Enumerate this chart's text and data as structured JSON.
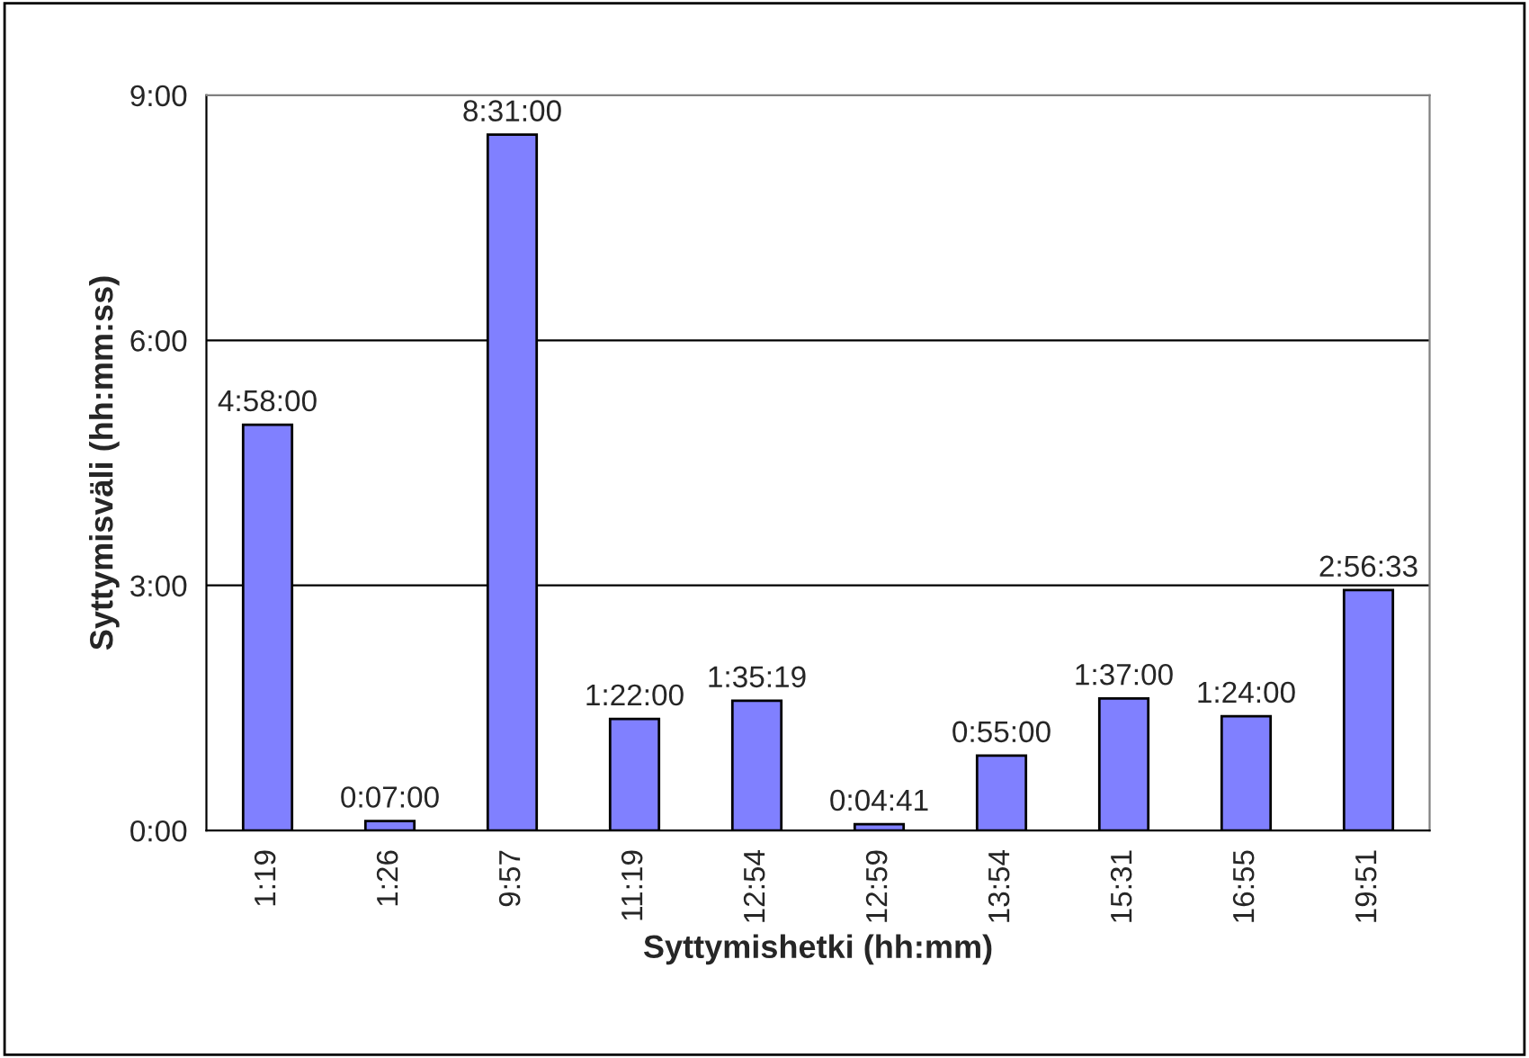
{
  "chart_data": {
    "type": "bar",
    "xlabel": "Syttymishetki (hh:mm)",
    "ylabel": "Syttymisväli (hh:mm:ss)",
    "categories": [
      "1:19",
      "1:26",
      "9:57",
      "11:19",
      "12:54",
      "12:59",
      "13:54",
      "15:31",
      "16:55",
      "19:51"
    ],
    "values": [
      4.9667,
      0.1167,
      8.5167,
      1.3667,
      1.5886,
      0.0781,
      0.9167,
      1.6167,
      1.4,
      2.9425
    ],
    "value_labels": [
      "4:58:00",
      "0:07:00",
      "8:31:00",
      "1:22:00",
      "1:35:19",
      "0:04:41",
      "0:55:00",
      "1:37:00",
      "1:24:00",
      "2:56:33"
    ],
    "color": "#8080ff",
    "ylim": [
      0,
      9
    ],
    "yticks": [
      {
        "value": 0,
        "label": "0:00"
      },
      {
        "value": 3,
        "label": "3:00"
      },
      {
        "value": 6,
        "label": "6:00"
      },
      {
        "value": 9,
        "label": "9:00"
      }
    ],
    "grid": "y",
    "legend": false
  }
}
